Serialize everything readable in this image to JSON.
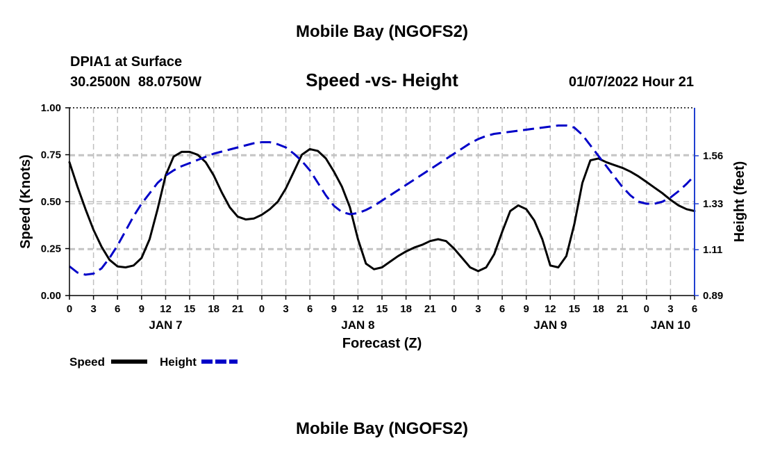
{
  "title": "Mobile Bay (NGOFS2)",
  "station_line": "DPIA1 at Surface",
  "coordinates": "30.2500N  88.0750W",
  "subtitle": "Speed -vs- Height",
  "datetime": "01/07/2022 Hour 21",
  "footer_title": "Mobile Bay (NGOFS2)",
  "chart_data": {
    "type": "line",
    "title": "Speed -vs- Height",
    "xlabel": "Forecast (Z)",
    "ylabel": "Speed (Knots)",
    "y2label": "Height (feet)",
    "x_unit": "hours since 2022-01-07 00Z",
    "xlim": [
      0,
      78
    ],
    "ylim": [
      0,
      1.0
    ],
    "y2lim": [
      0.89,
      1.79
    ],
    "grid": true,
    "legend_position": "bottom-left",
    "x_tick_values": [
      0,
      3,
      6,
      9,
      12,
      15,
      18,
      21,
      24,
      27,
      30,
      33,
      36,
      39,
      42,
      45,
      48,
      51,
      54,
      57,
      60,
      63,
      66,
      69,
      72,
      75,
      78
    ],
    "x_tick_labels": [
      "0",
      "3",
      "6",
      "9",
      "12",
      "15",
      "18",
      "21",
      "0",
      "3",
      "6",
      "9",
      "12",
      "15",
      "18",
      "21",
      "0",
      "3",
      "6",
      "9",
      "12",
      "15",
      "18",
      "21",
      "0",
      "3",
      "6"
    ],
    "date_labels": [
      {
        "x": 12,
        "label": "JAN 7"
      },
      {
        "x": 36,
        "label": "JAN 8"
      },
      {
        "x": 60,
        "label": "JAN 9"
      },
      {
        "x": 75,
        "label": "JAN 10"
      }
    ],
    "y_ticks": [
      "0.00",
      "0.25",
      "0.50",
      "0.75",
      "1.00"
    ],
    "y_tick_values": [
      0,
      0.25,
      0.5,
      0.75,
      1.0
    ],
    "y2_ticks": [
      "0.89",
      "1.11",
      "1.33",
      "1.56"
    ],
    "y2_tick_values": [
      0.89,
      1.11,
      1.33,
      1.56
    ],
    "series": [
      {
        "name": "Speed",
        "axis": "left",
        "color": "#000000",
        "dashed": false,
        "x": [
          0,
          1,
          2,
          3,
          4,
          5,
          6,
          7,
          8,
          9,
          10,
          11,
          12,
          13,
          14,
          15,
          16,
          17,
          18,
          19,
          20,
          21,
          22,
          23,
          24,
          25,
          26,
          27,
          28,
          29,
          30,
          31,
          32,
          33,
          34,
          35,
          36,
          37,
          38,
          39,
          40,
          41,
          42,
          43,
          44,
          45,
          46,
          47,
          48,
          49,
          50,
          51,
          52,
          53,
          54,
          55,
          56,
          57,
          58,
          59,
          60,
          61,
          62,
          63,
          64,
          65,
          66,
          67,
          68,
          69,
          70,
          71,
          72,
          73,
          74,
          75,
          76,
          77,
          78
        ],
        "values": [
          0.71,
          0.58,
          0.46,
          0.35,
          0.26,
          0.19,
          0.155,
          0.15,
          0.16,
          0.2,
          0.3,
          0.46,
          0.64,
          0.74,
          0.765,
          0.765,
          0.75,
          0.71,
          0.64,
          0.55,
          0.47,
          0.42,
          0.405,
          0.41,
          0.43,
          0.46,
          0.5,
          0.57,
          0.66,
          0.75,
          0.78,
          0.77,
          0.73,
          0.66,
          0.58,
          0.47,
          0.3,
          0.17,
          0.14,
          0.15,
          0.18,
          0.21,
          0.235,
          0.255,
          0.27,
          0.29,
          0.3,
          0.29,
          0.25,
          0.2,
          0.15,
          0.13,
          0.15,
          0.22,
          0.34,
          0.45,
          0.48,
          0.46,
          0.4,
          0.3,
          0.16,
          0.15,
          0.21,
          0.38,
          0.6,
          0.72,
          0.73,
          0.71,
          0.695,
          0.68,
          0.66,
          0.635,
          0.605,
          0.575,
          0.545,
          0.51,
          0.48,
          0.46,
          0.45
        ]
      },
      {
        "name": "Height",
        "axis": "right",
        "color": "#0000c8",
        "dashed": true,
        "x": [
          0,
          1,
          2,
          3,
          4,
          5,
          6,
          7,
          8,
          9,
          10,
          11,
          12,
          13,
          14,
          15,
          16,
          17,
          18,
          19,
          20,
          21,
          22,
          23,
          24,
          25,
          26,
          27,
          28,
          29,
          30,
          31,
          32,
          33,
          34,
          35,
          36,
          37,
          38,
          39,
          40,
          41,
          42,
          43,
          44,
          45,
          46,
          47,
          48,
          49,
          50,
          51,
          52,
          53,
          54,
          55,
          56,
          57,
          58,
          59,
          60,
          61,
          62,
          63,
          64,
          65,
          66,
          67,
          68,
          69,
          70,
          71,
          72,
          73,
          74,
          75,
          76,
          77,
          78
        ],
        "values": [
          1.03,
          1.0,
          0.99,
          0.995,
          1.02,
          1.07,
          1.13,
          1.2,
          1.27,
          1.33,
          1.38,
          1.43,
          1.465,
          1.49,
          1.51,
          1.525,
          1.54,
          1.555,
          1.57,
          1.58,
          1.59,
          1.6,
          1.61,
          1.62,
          1.625,
          1.625,
          1.615,
          1.6,
          1.57,
          1.535,
          1.49,
          1.43,
          1.37,
          1.32,
          1.29,
          1.28,
          1.285,
          1.3,
          1.32,
          1.345,
          1.37,
          1.395,
          1.42,
          1.445,
          1.47,
          1.495,
          1.52,
          1.545,
          1.57,
          1.595,
          1.62,
          1.64,
          1.655,
          1.665,
          1.67,
          1.675,
          1.68,
          1.685,
          1.69,
          1.695,
          1.7,
          1.705,
          1.705,
          1.695,
          1.66,
          1.61,
          1.56,
          1.51,
          1.46,
          1.41,
          1.37,
          1.34,
          1.33,
          1.33,
          1.34,
          1.36,
          1.39,
          1.425,
          1.465
        ]
      }
    ]
  }
}
